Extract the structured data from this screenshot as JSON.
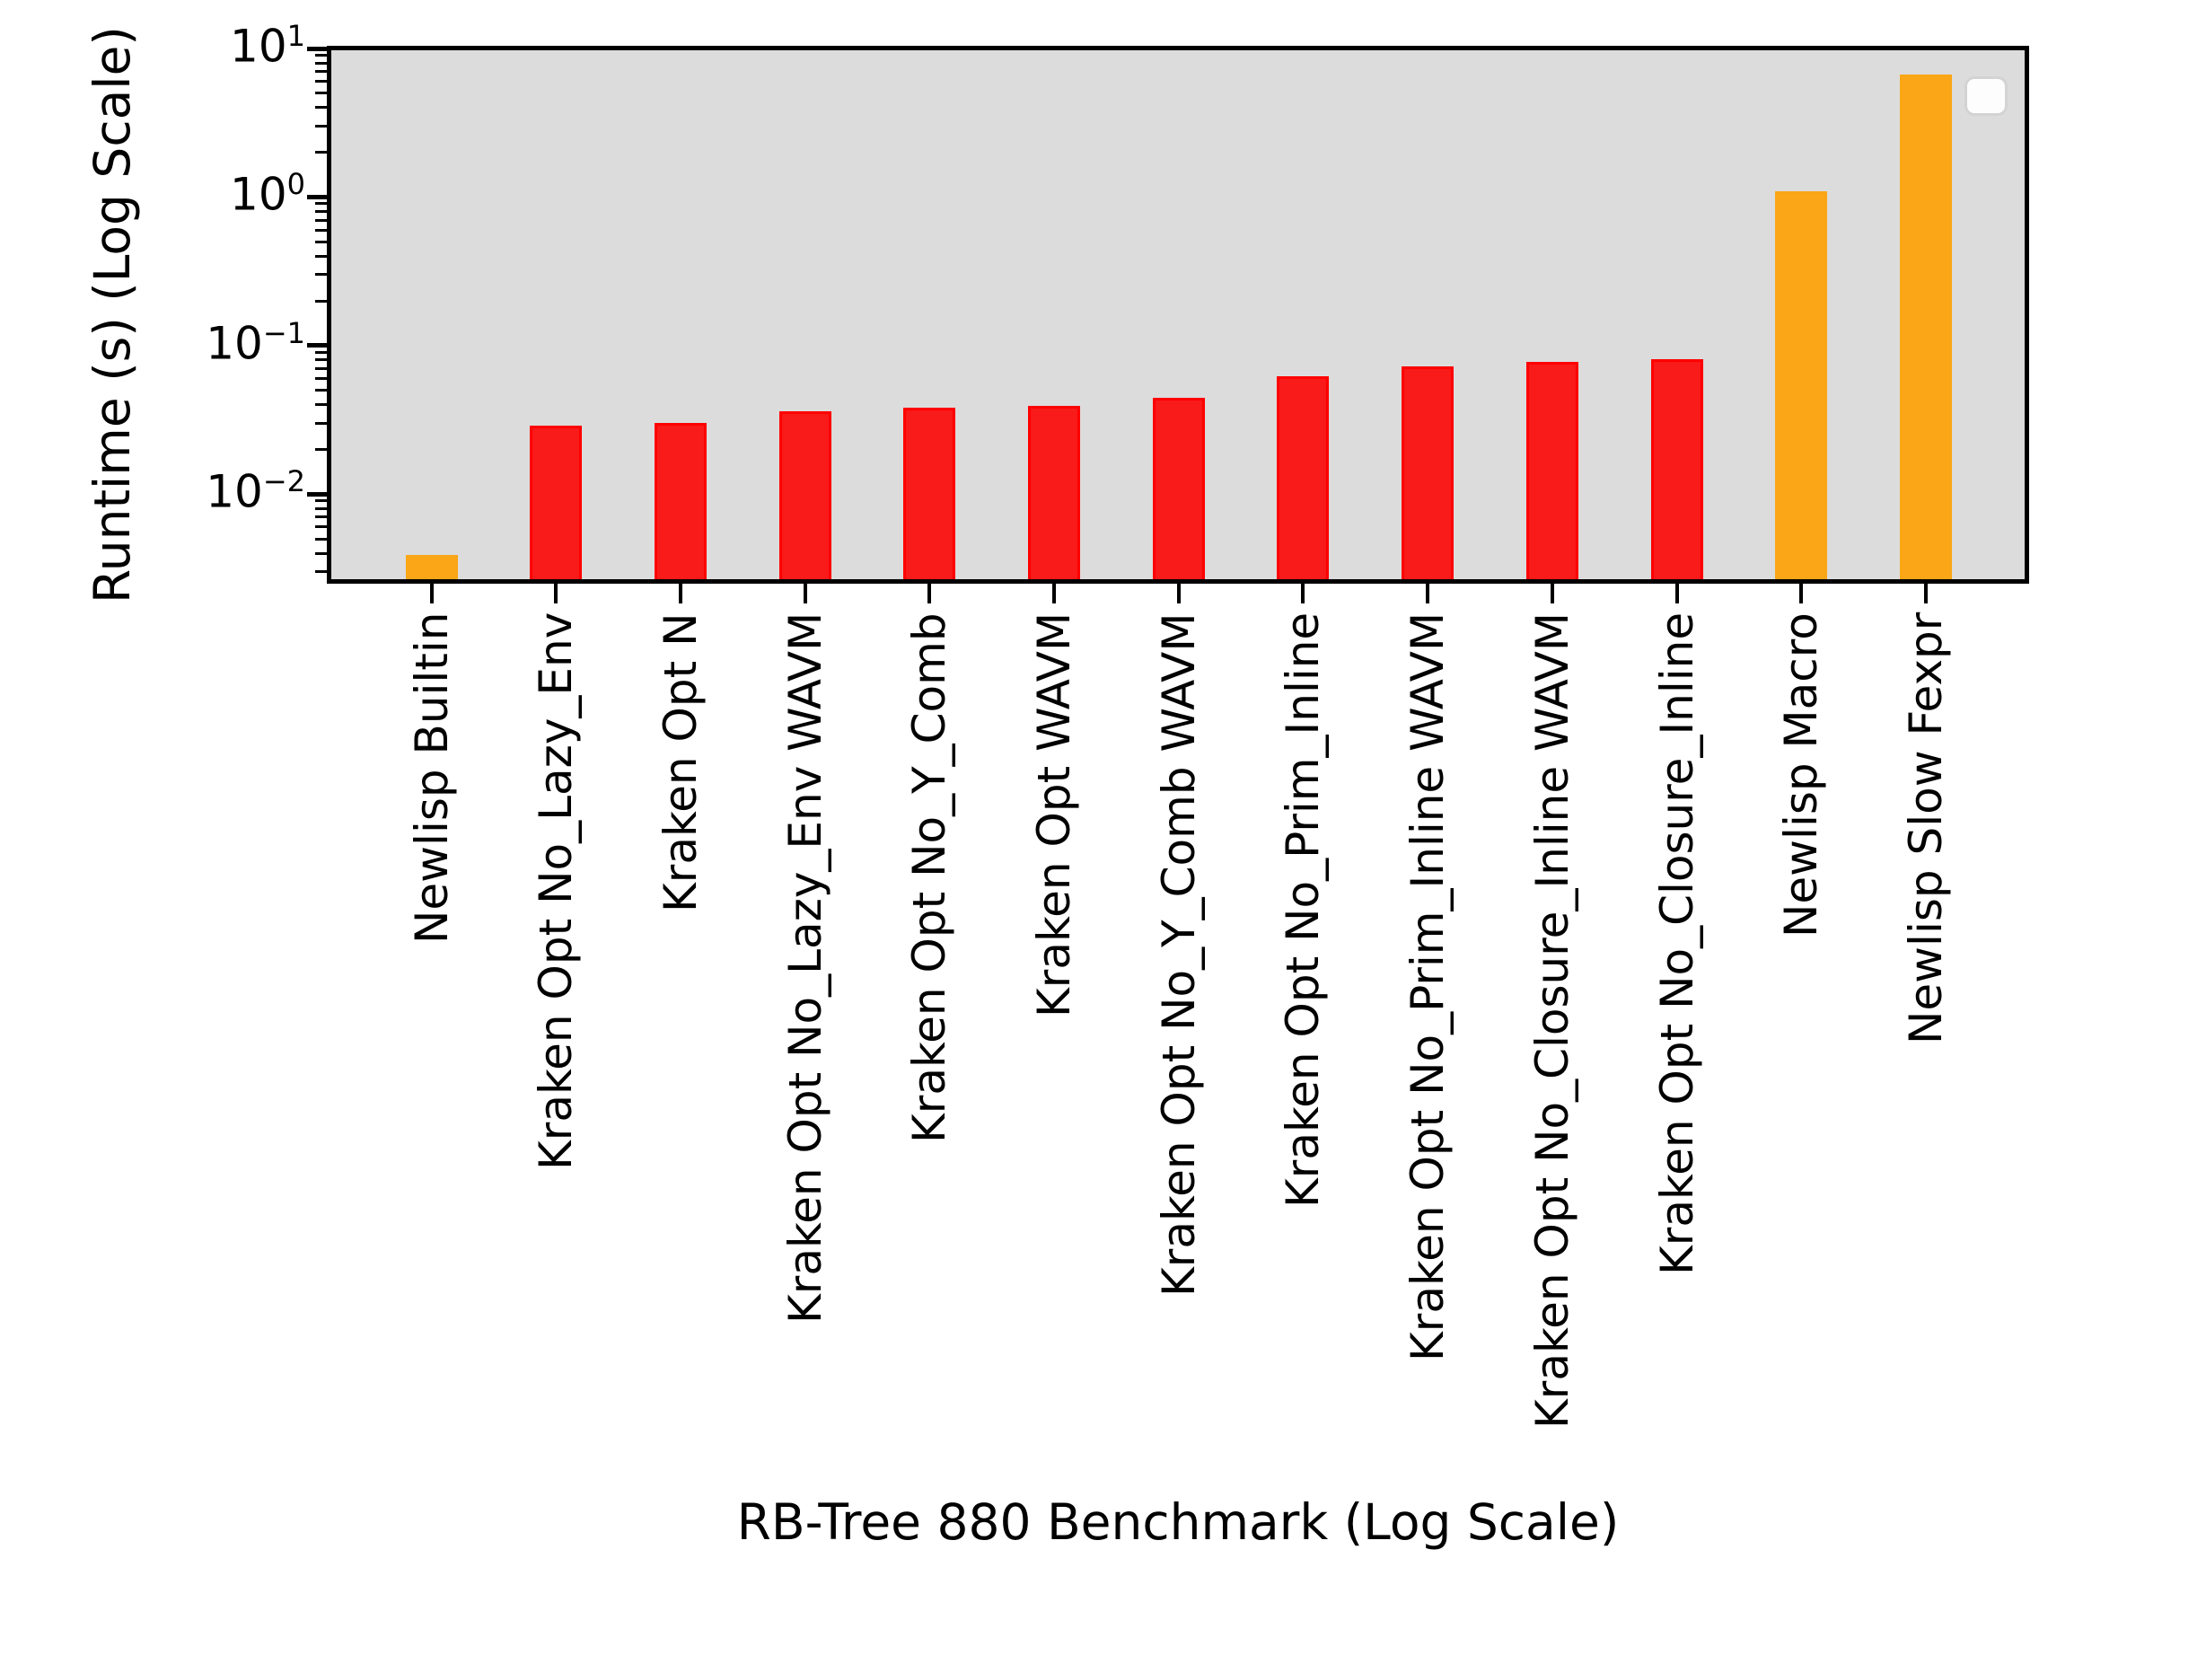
{
  "chart_data": {
    "type": "bar",
    "xlabel": "RB-Tree 880 Benchmark (Log Scale)",
    "ylabel": "Runtime (s) (Log Scale)",
    "yscale": "log",
    "ylim": [
      0.0026,
      10
    ],
    "y_tick_exponents": [
      1,
      0,
      -1,
      -2
    ],
    "grid": false,
    "legend_position": "upper right",
    "legend_empty": true,
    "plot_bg_color": "#dcdcdc",
    "categories": [
      "Newlisp Builtin",
      "Kraken Opt No_Lazy_Env",
      "Kraken Opt N",
      "Kraken Opt No_Lazy_Env WAVM",
      "Kraken Opt No_Y_Comb",
      "Kraken Opt WAVM",
      "Kraken Opt No_Y_Comb WAVM",
      "Kraken Opt No_Prim_Inline",
      "Kraken Opt No_Prim_Inline WAVM",
      "Kraken Opt No_Closure_Inline WAVM",
      "Kraken Opt No_Closure_Inline",
      "Newlisp Macro",
      "Newlisp Slow Fexpr"
    ],
    "values": [
      0.0039,
      0.0288,
      0.03,
      0.036,
      0.038,
      0.0392,
      0.0443,
      0.0625,
      0.0728,
      0.078,
      0.0812,
      1.1,
      6.65
    ],
    "bar_color_names": [
      "orange",
      "red",
      "red",
      "red",
      "red",
      "red",
      "red",
      "red",
      "red",
      "red",
      "red",
      "orange",
      "orange"
    ],
    "palette": {
      "red": {
        "fill": "#f91a1a",
        "edge": "#ff0000"
      },
      "orange": {
        "fill": "#faa616",
        "edge": "#faa616"
      }
    }
  }
}
